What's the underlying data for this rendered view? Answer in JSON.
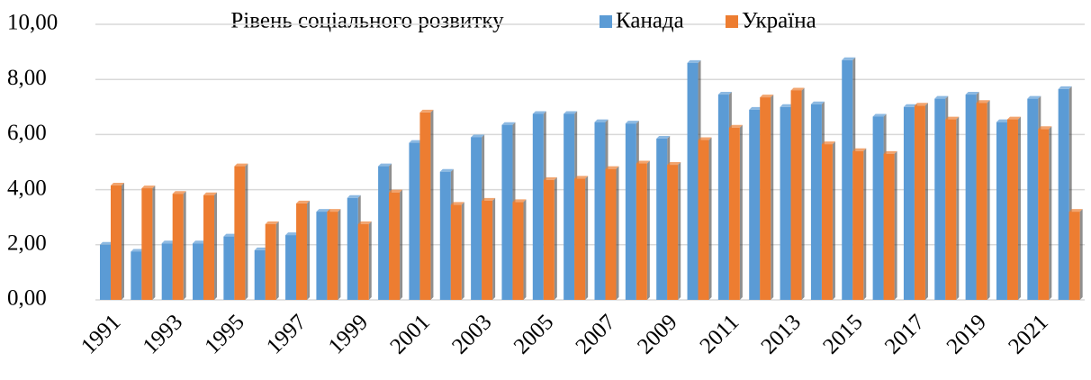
{
  "chart_data": {
    "type": "bar",
    "title": "Рівень соціального розвитку",
    "categories": [
      "1991",
      null,
      "1993",
      null,
      "1995",
      null,
      "1997",
      null,
      "1999",
      null,
      "2001",
      null,
      "2003",
      null,
      "2005",
      null,
      "2007",
      null,
      "2009",
      null,
      "2011",
      null,
      "2013",
      null,
      "2015",
      null,
      "2017",
      null,
      "2019",
      null,
      "2021",
      null
    ],
    "series": [
      {
        "name": "Канада",
        "color": "#5b9bd5",
        "values": [
          2.0,
          1.75,
          2.05,
          2.05,
          2.3,
          1.8,
          2.35,
          3.2,
          3.7,
          4.85,
          5.7,
          4.65,
          5.9,
          6.35,
          6.75,
          6.75,
          6.45,
          6.4,
          5.85,
          8.6,
          7.45,
          6.9,
          7.0,
          7.1,
          8.7,
          6.65,
          7.0,
          7.3,
          7.45,
          6.45,
          7.3,
          7.65
        ]
      },
      {
        "name": "Україна",
        "color": "#ed7d31",
        "values": [
          4.15,
          4.05,
          3.85,
          3.8,
          4.85,
          2.75,
          3.5,
          3.2,
          2.75,
          3.9,
          6.8,
          3.45,
          3.6,
          3.55,
          4.35,
          4.4,
          4.75,
          4.95,
          4.9,
          5.8,
          6.25,
          7.35,
          7.6,
          5.65,
          5.4,
          5.3,
          7.05,
          6.55,
          7.15,
          6.55,
          6.2,
          3.2
        ]
      }
    ],
    "ylim": [
      0,
      10
    ],
    "yticks": [
      {
        "value": 0,
        "label": "0,00"
      },
      {
        "value": 2,
        "label": "2,00"
      },
      {
        "value": 4,
        "label": "4,00"
      },
      {
        "value": 6,
        "label": "6,00"
      },
      {
        "value": 8,
        "label": "8,00"
      },
      {
        "value": 10,
        "label": "10,00"
      }
    ],
    "grid": true
  }
}
